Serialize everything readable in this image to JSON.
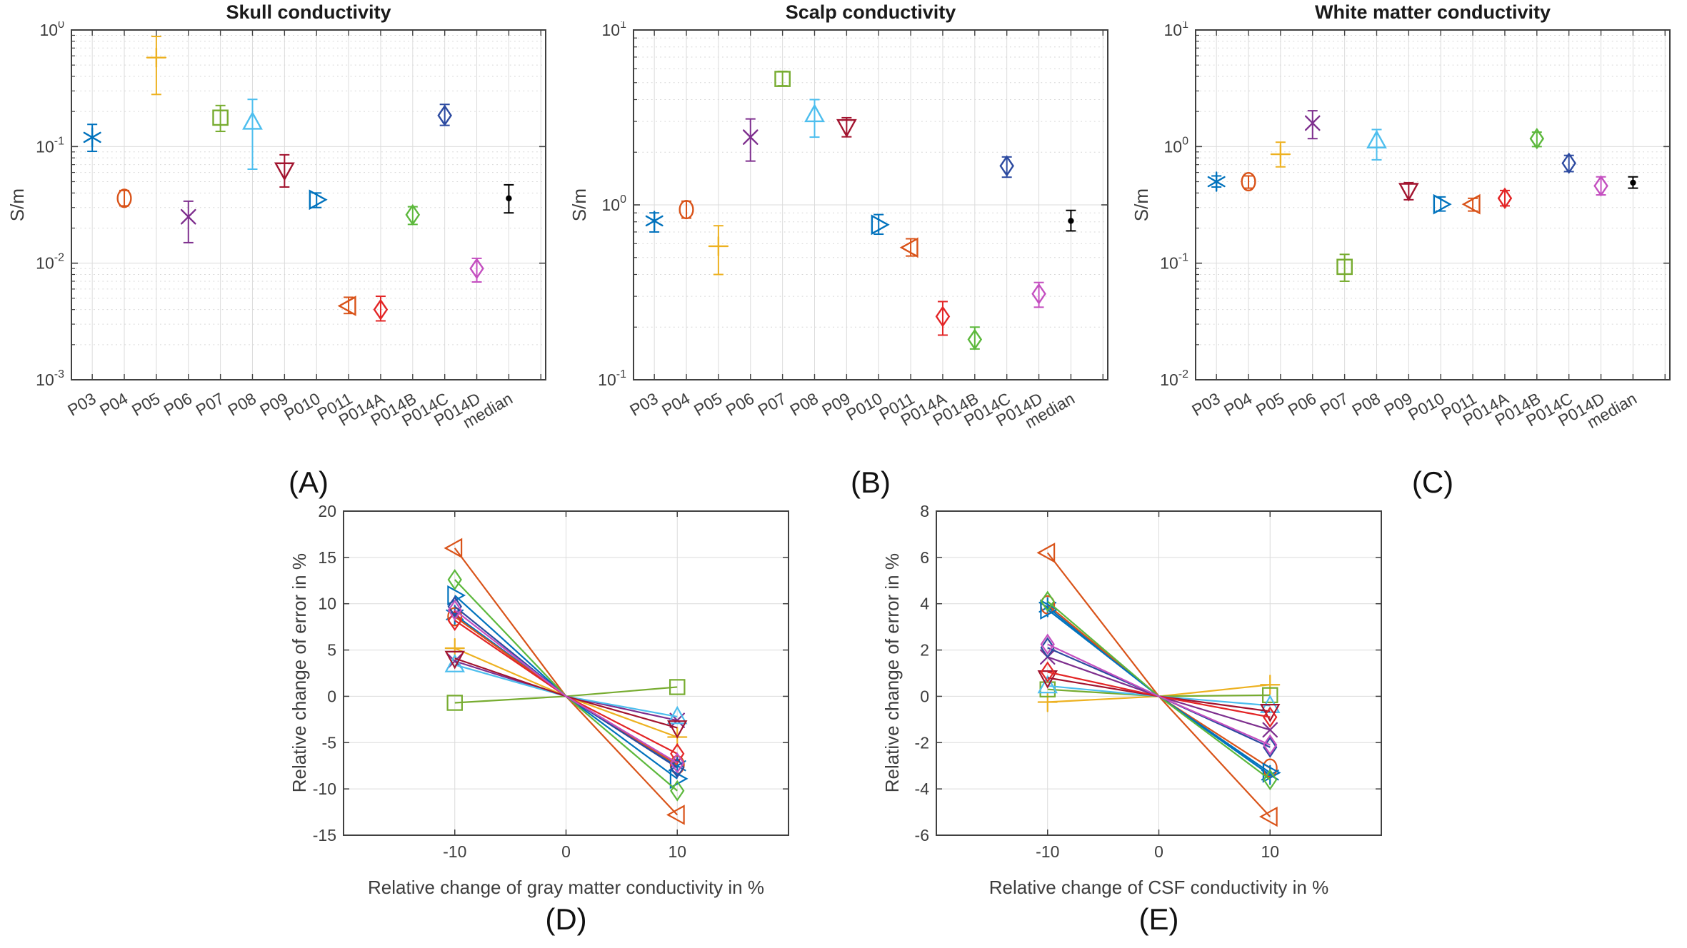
{
  "figure": {
    "subjects": [
      "P03",
      "P04",
      "P05",
      "P06",
      "P07",
      "P08",
      "P09",
      "P010",
      "P011",
      "P014A",
      "P014B",
      "P014C",
      "P014D",
      "median"
    ],
    "series_styles": [
      {
        "subject": "P03",
        "marker": "asterisk",
        "color": "#0072BD"
      },
      {
        "subject": "P04",
        "marker": "circle",
        "color": "#D95319"
      },
      {
        "subject": "P05",
        "marker": "plus",
        "color": "#EDB120"
      },
      {
        "subject": "P06",
        "marker": "x",
        "color": "#7E2F8E"
      },
      {
        "subject": "P07",
        "marker": "square",
        "color": "#77AC30"
      },
      {
        "subject": "P08",
        "marker": "triangle-up",
        "color": "#4DBEEE"
      },
      {
        "subject": "P09",
        "marker": "triangle-down",
        "color": "#A2142F"
      },
      {
        "subject": "P010",
        "marker": "triangle-right",
        "color": "#0072BD"
      },
      {
        "subject": "P011",
        "marker": "triangle-left",
        "color": "#D95319"
      },
      {
        "subject": "P014A",
        "marker": "diamond",
        "color": "#E32526"
      },
      {
        "subject": "P014B",
        "marker": "diamond",
        "color": "#5CB83C"
      },
      {
        "subject": "P014C",
        "marker": "diamond",
        "color": "#2C4AA0"
      },
      {
        "subject": "P014D",
        "marker": "diamond",
        "color": "#C44FC0"
      },
      {
        "subject": "median",
        "marker": "point",
        "color": "#000000"
      }
    ]
  },
  "chart_data": [
    {
      "id": "A",
      "type": "scatter",
      "yscale": "log",
      "caption": "(A)",
      "title": "Skull conductivity",
      "ylabel": "S/m",
      "ylim": [
        0.001,
        1
      ],
      "categories": [
        "P03",
        "P04",
        "P05",
        "P06",
        "P07",
        "P08",
        "P09",
        "P010",
        "P011",
        "P014A",
        "P014B",
        "P014C",
        "P014D",
        "median"
      ],
      "values": [
        0.12,
        0.036,
        0.58,
        0.025,
        0.177,
        0.162,
        0.063,
        0.035,
        0.0043,
        0.004,
        0.026,
        0.185,
        0.009,
        0.036
      ],
      "err_lo": [
        0.091,
        0.031,
        0.28,
        0.015,
        0.135,
        0.064,
        0.045,
        0.03,
        0.0037,
        0.0032,
        0.0215,
        0.152,
        0.0069,
        0.027
      ],
      "err_hi": [
        0.155,
        0.042,
        0.88,
        0.034,
        0.225,
        0.254,
        0.085,
        0.04,
        0.0051,
        0.0052,
        0.0305,
        0.23,
        0.011,
        0.047
      ]
    },
    {
      "id": "B",
      "type": "scatter",
      "yscale": "log",
      "caption": "(B)",
      "title": "Scalp conductivity",
      "ylabel": "S/m",
      "ylim": [
        0.1,
        10
      ],
      "categories": [
        "P03",
        "P04",
        "P05",
        "P06",
        "P07",
        "P08",
        "P09",
        "P010",
        "P011",
        "P014A",
        "P014B",
        "P014C",
        "P014D",
        "median"
      ],
      "values": [
        0.81,
        0.94,
        0.58,
        2.44,
        5.25,
        3.28,
        2.8,
        0.77,
        0.57,
        0.23,
        0.17,
        1.67,
        0.31,
        0.81
      ],
      "err_lo": [
        0.7,
        0.84,
        0.4,
        1.78,
        4.8,
        2.44,
        2.45,
        0.68,
        0.51,
        0.18,
        0.15,
        1.44,
        0.26,
        0.71
      ],
      "err_hi": [
        0.9,
        1.05,
        0.76,
        3.1,
        5.8,
        4.0,
        3.15,
        0.88,
        0.64,
        0.28,
        0.2,
        1.88,
        0.36,
        0.93
      ]
    },
    {
      "id": "C",
      "type": "scatter",
      "yscale": "log",
      "caption": "(C)",
      "title": "White matter conductivity",
      "ylabel": "S/m",
      "ylim": [
        0.01,
        10
      ],
      "categories": [
        "P03",
        "P04",
        "P05",
        "P06",
        "P07",
        "P08",
        "P09",
        "P010",
        "P011",
        "P014A",
        "P014B",
        "P014C",
        "P014D",
        "median"
      ],
      "values": [
        0.5,
        0.5,
        0.86,
        1.59,
        0.093,
        1.12,
        0.42,
        0.32,
        0.32,
        0.36,
        1.17,
        0.72,
        0.46,
        0.49
      ],
      "err_lo": [
        0.45,
        0.44,
        0.67,
        1.17,
        0.07,
        0.77,
        0.35,
        0.28,
        0.28,
        0.31,
        1.0,
        0.61,
        0.385,
        0.44
      ],
      "err_hi": [
        0.56,
        0.56,
        1.09,
        2.03,
        0.119,
        1.4,
        0.49,
        0.37,
        0.36,
        0.42,
        1.33,
        0.84,
        0.55,
        0.55
      ]
    },
    {
      "id": "D",
      "type": "line",
      "caption": "(D)",
      "xlabel": "Relative change of gray matter conductivity in %",
      "ylabel": "Relative change of error in %",
      "x": [
        -10,
        0,
        10
      ],
      "xlim": [
        -20,
        20
      ],
      "xticks": [
        -10,
        0,
        10
      ],
      "ylim": [
        -15,
        20
      ],
      "ytick_step": 5,
      "grid": true,
      "series": [
        {
          "name": "P03",
          "values": [
            8.8,
            0,
            -7.5
          ]
        },
        {
          "name": "P04",
          "values": [
            8.6,
            0,
            -7.4
          ]
        },
        {
          "name": "P05",
          "values": [
            5.2,
            0,
            -4.4
          ]
        },
        {
          "name": "P06",
          "values": [
            3.8,
            0,
            -2.6
          ]
        },
        {
          "name": "P07",
          "values": [
            -0.7,
            0,
            1.0
          ]
        },
        {
          "name": "P08",
          "values": [
            3.4,
            0,
            -2.2
          ]
        },
        {
          "name": "P09",
          "values": [
            4.1,
            0,
            -3.4
          ]
        },
        {
          "name": "P010",
          "values": [
            10.9,
            0,
            -8.9
          ]
        },
        {
          "name": "P011",
          "values": [
            16.0,
            0,
            -12.8
          ]
        },
        {
          "name": "P014A",
          "values": [
            8.2,
            0,
            -6.2
          ]
        },
        {
          "name": "P014B",
          "values": [
            12.6,
            0,
            -10.2
          ]
        },
        {
          "name": "P014C",
          "values": [
            9.7,
            0,
            -7.7
          ]
        },
        {
          "name": "P014D",
          "values": [
            9.3,
            0,
            -7.2
          ]
        }
      ]
    },
    {
      "id": "E",
      "type": "line",
      "caption": "(E)",
      "xlabel": "Relative change of CSF conductivity in %",
      "ylabel": "Relative change of error in %",
      "x": [
        -10,
        0,
        10
      ],
      "xlim": [
        -20,
        20
      ],
      "xticks": [
        -10,
        0,
        10
      ],
      "ylim": [
        -6,
        8
      ],
      "ytick_step": 2,
      "grid": true,
      "series": [
        {
          "name": "P03",
          "values": [
            3.85,
            0,
            -3.4
          ]
        },
        {
          "name": "P04",
          "values": [
            3.95,
            0,
            -3.1
          ]
        },
        {
          "name": "P05",
          "values": [
            -0.25,
            0,
            0.5
          ]
        },
        {
          "name": "P06",
          "values": [
            1.7,
            0,
            -1.45
          ]
        },
        {
          "name": "P07",
          "values": [
            0.3,
            0,
            0.05
          ]
        },
        {
          "name": "P08",
          "values": [
            0.45,
            0,
            -0.4
          ]
        },
        {
          "name": "P09",
          "values": [
            0.8,
            0,
            -0.65
          ]
        },
        {
          "name": "P010",
          "values": [
            3.75,
            0,
            -3.3
          ]
        },
        {
          "name": "P011",
          "values": [
            6.2,
            0,
            -5.2
          ]
        },
        {
          "name": "P014A",
          "values": [
            1.05,
            0,
            -0.9
          ]
        },
        {
          "name": "P014B",
          "values": [
            4.1,
            0,
            -3.6
          ]
        },
        {
          "name": "P014C",
          "values": [
            2.1,
            0,
            -2.2
          ]
        },
        {
          "name": "P014D",
          "values": [
            2.25,
            0,
            -2.1
          ]
        }
      ]
    }
  ]
}
